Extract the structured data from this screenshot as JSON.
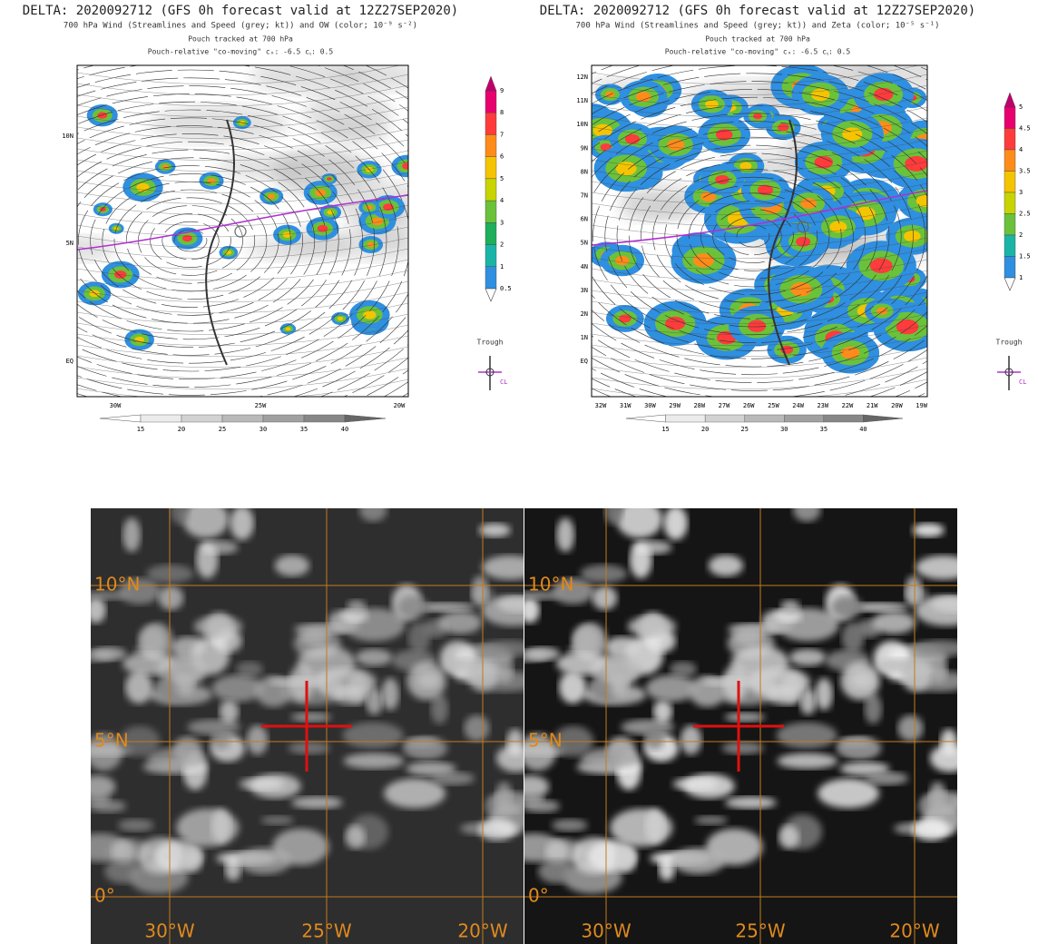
{
  "panels": [
    {
      "title": "DELTA: 2020092712 (GFS 0h forecast valid at 12Z27SEP2020)",
      "subtitle": "700 hPa Wind (Streamlines and Speed (grey; kt)) and OW (color; 10⁻⁹ s⁻²)",
      "note1": "Pouch tracked at 700 hPa",
      "note2": "Pouch-relative \"co-moving\" cₓ: -6.5 cᵧ: 0.5",
      "y_labels": [
        "10N",
        "5N",
        "EQ"
      ],
      "x_labels": [
        "30W",
        "25W",
        "20W"
      ],
      "colorbar_labels": [
        "9",
        "8",
        "7",
        "6",
        "5",
        "4",
        "3",
        "2",
        "1",
        "0.5"
      ],
      "speed_labels": [
        "15",
        "20",
        "25",
        "30",
        "35",
        "40"
      ],
      "legend_title": "Trough",
      "legend_cl": "CL"
    },
    {
      "title": "DELTA: 2020092712 (GFS 0h forecast valid at 12Z27SEP2020)",
      "subtitle": "700 hPa Wind (Streamlines and Speed (grey; kt)) and Zeta (color; 10⁻⁵ s⁻¹)",
      "note1": "Pouch tracked at 700 hPa",
      "note2": "Pouch-relative \"co-moving\" cₓ: -6.5 cᵧ: 0.5",
      "y_labels": [
        "12N",
        "11N",
        "10N",
        "9N",
        "8N",
        "7N",
        "6N",
        "5N",
        "4N",
        "3N",
        "2N",
        "1N",
        "EQ"
      ],
      "x_labels": [
        "32W",
        "31W",
        "30W",
        "29W",
        "28W",
        "27W",
        "26W",
        "25W",
        "24W",
        "23W",
        "22W",
        "21W",
        "20W",
        "19W"
      ],
      "colorbar_labels": [
        "5",
        "4.5",
        "4",
        "3.5",
        "3",
        "2.5",
        "2",
        "1.5",
        "1"
      ],
      "speed_labels": [
        "15",
        "20",
        "25",
        "30",
        "35",
        "40"
      ],
      "legend_title": "Trough",
      "legend_cl": "CL"
    }
  ],
  "satellite": {
    "lat_labels": [
      "10°N",
      "5°N",
      "0°"
    ],
    "lon_labels": [
      "30°W",
      "25°W",
      "20°W"
    ]
  }
}
